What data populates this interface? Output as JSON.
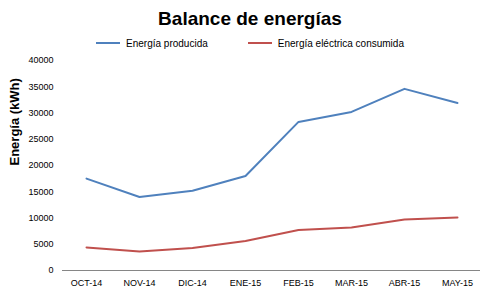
{
  "chart_data": {
    "type": "line",
    "title": "Balance de energías",
    "y_label": "Energía (kWh)",
    "categories": [
      "OCT-14",
      "NOV-14",
      "DIC-14",
      "ENE-15",
      "FEB-15",
      "MAR-15",
      "ABR-15",
      "MAY-15"
    ],
    "series": [
      {
        "name": "Energía producida",
        "color": "#4F81BD",
        "values": [
          17500,
          14000,
          15200,
          18000,
          28300,
          30200,
          34600,
          31900
        ]
      },
      {
        "name": "Energía eléctrica consumida",
        "color": "#C0504D",
        "values": [
          4400,
          3600,
          4300,
          5600,
          7700,
          8200,
          9700,
          10100
        ]
      }
    ],
    "ylim": [
      0,
      40000
    ],
    "yticks": [
      0,
      5000,
      10000,
      15000,
      20000,
      25000,
      30000,
      35000,
      40000
    ],
    "grid": false,
    "legend": "top"
  }
}
